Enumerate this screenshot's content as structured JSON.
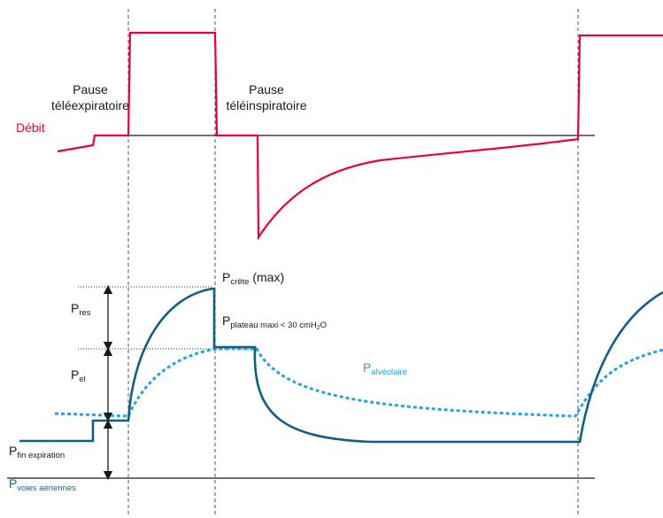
{
  "labels": {
    "pause_expi_line1": "Pause",
    "pause_expi_line2": "téléexpiratoire",
    "pause_inspi_line1": "Pause",
    "pause_inspi_line2": "téléinspiratoire",
    "debit": "Débit",
    "p_crete_main": "P",
    "p_crete_sub": "crête",
    "p_crete_suffix": " (max)",
    "p_plateau_main": "P",
    "p_plateau_sub": "plateau maxi < 30 cmH",
    "p_plateau_sub2": "2",
    "p_plateau_sub3": "O",
    "p_res_main": "P",
    "p_res_sub": "res",
    "p_el_main": "P",
    "p_el_sub": "el",
    "p_fin_main": "P",
    "p_fin_sub": "fin expiration",
    "p_voies_main": "P",
    "p_voies_sub": "voies aériennes",
    "p_alv_main": "P",
    "p_alv_sub": "alvéolaire"
  },
  "colors": {
    "flow": "#e8003d",
    "airway_pressure": "#0f5f82",
    "alveolar_pressure": "#2ba3d6",
    "axis": "#1a1a1a",
    "dashed": "#555555"
  }
}
